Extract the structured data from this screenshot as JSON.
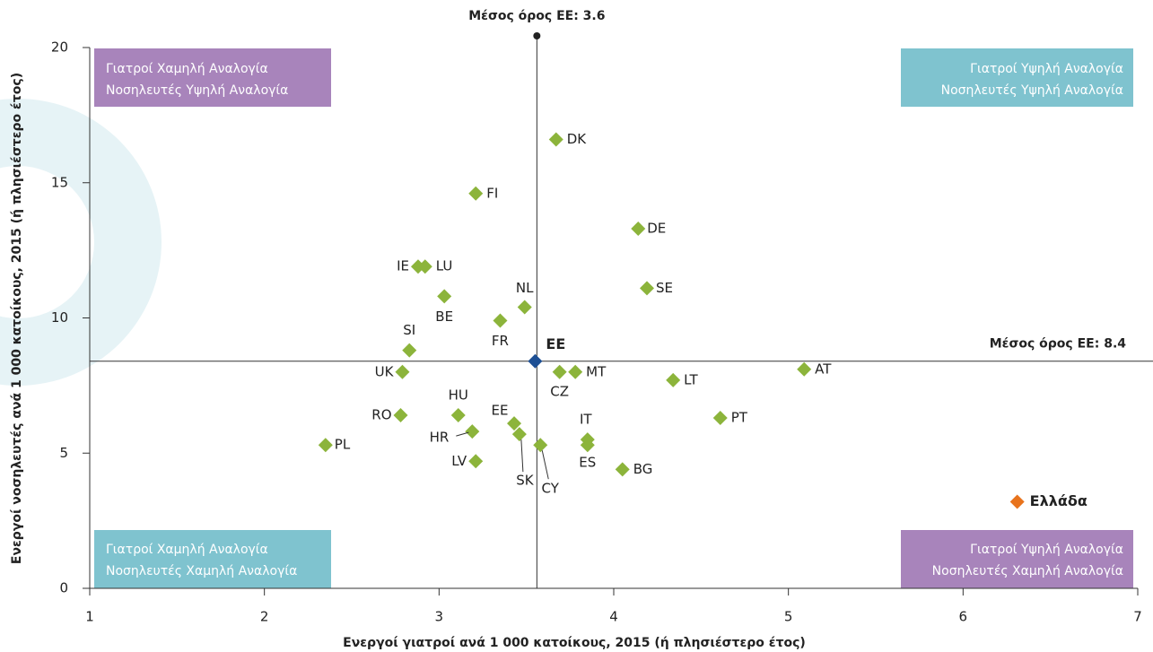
{
  "chart_data": {
    "type": "scatter",
    "x_label": "Ενεργοί γιατροί ανά 1 000 κατοίκους, 2015 (ή πλησιέστερο έτος)",
    "y_label": "Ενεργοί νοσηλευτές ανά 1 000 κατοίκους, 2015 (ή πλησιέστερο έτος)",
    "xlim": [
      1,
      7
    ],
    "xticks": [
      1,
      2,
      3,
      4,
      5,
      6,
      7
    ],
    "ylim": [
      0,
      20
    ],
    "yticks": [
      0,
      5,
      10,
      15,
      20
    ],
    "mean_x": {
      "value": 3.56,
      "label": "Μέσος όρος ΕΕ: 3.6"
    },
    "mean_y": {
      "value": 8.4,
      "label": "Μέσος όρος ΕΕ: 8.4"
    },
    "quadrants": {
      "top_left": [
        "Γιατροί Χαμηλή Αναλογία",
        "Νοσηλευτές Υψηλή Αναλογία"
      ],
      "top_right": [
        "Γιατροί Υψηλή Αναλογία",
        "Νοσηλευτές Υψηλή Αναλογία"
      ],
      "bottom_left": [
        "Γιατροί Χαμηλή Αναλογία",
        "Νοσηλευτές Χαμηλή Αναλογία"
      ],
      "bottom_right": [
        "Γιατροί Υψηλή Αναλογία",
        "Νοσηλευτές Χαμηλή Αναλογία"
      ]
    },
    "series": [
      {
        "color": "#8cb43b",
        "labels": [
          "DK",
          "FI",
          "DE",
          "IE",
          "LU",
          "BE",
          "NL",
          "SE",
          "FR",
          "SI",
          "UK",
          "CZ",
          "MT",
          "AT",
          "LT",
          "HU",
          "RO",
          "PT",
          "EE",
          "HR",
          "SK",
          "IT",
          "ES",
          "CY",
          "PL",
          "LV",
          "BG"
        ],
        "x": [
          3.67,
          3.21,
          4.14,
          2.88,
          2.92,
          3.03,
          3.49,
          4.19,
          3.35,
          2.83,
          2.79,
          3.69,
          3.78,
          5.09,
          4.34,
          3.11,
          2.78,
          4.61,
          3.43,
          3.19,
          3.46,
          3.85,
          3.85,
          3.58,
          2.35,
          3.21,
          4.05
        ],
        "values": [
          16.6,
          14.6,
          13.3,
          11.9,
          11.9,
          10.8,
          10.4,
          11.1,
          9.9,
          8.8,
          8.0,
          8.0,
          8.0,
          8.1,
          7.7,
          6.4,
          6.4,
          6.3,
          6.1,
          5.8,
          5.7,
          5.5,
          5.3,
          5.3,
          5.3,
          4.7,
          4.4
        ]
      },
      {
        "color": "#1d4f94",
        "labels": [
          "EE"
        ],
        "x": [
          3.55
        ],
        "values": [
          8.4
        ]
      },
      {
        "color": "#e8731c",
        "labels": [
          "Ελλάδα"
        ],
        "x": [
          6.31
        ],
        "values": [
          3.2
        ]
      }
    ]
  }
}
